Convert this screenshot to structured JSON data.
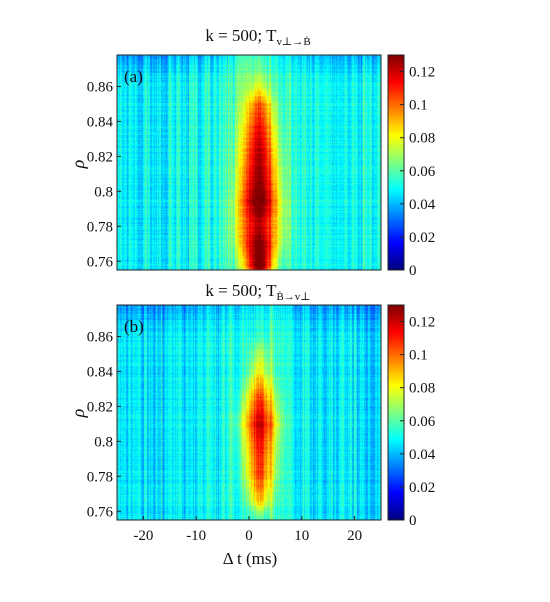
{
  "figure": {
    "xlabel": "Δ t (ms)",
    "ylabel": "ρ",
    "colormap": "jet",
    "panel_labels": [
      "(a)",
      "(b)"
    ]
  },
  "chart_data": [
    {
      "type": "heatmap",
      "panel": "(a)",
      "title": "k = 500;  T",
      "title_sub": "v⊥→Ḃ",
      "xlabel": "",
      "ylabel": "ρ",
      "xlim": [
        -25,
        25
      ],
      "ylim": [
        0.755,
        0.878
      ],
      "xticks": [
        -20,
        -10,
        0,
        10,
        20
      ],
      "yticks": [
        0.76,
        0.78,
        0.8,
        0.82,
        0.84,
        0.86
      ],
      "ytick_labels": [
        "0.76",
        "0.78",
        "0.8",
        "0.82",
        "0.84",
        "0.86"
      ],
      "colorbar": {
        "min": 0,
        "max": 0.13,
        "ticks": [
          0,
          0.02,
          0.04,
          0.06,
          0.08,
          0.1,
          0.12
        ],
        "tick_labels": [
          "0",
          "0.02",
          "0.04",
          "0.06",
          "0.08",
          "0.1",
          "0.12"
        ]
      },
      "background_level": 0.05,
      "peak_ridge": {
        "x_center": 2,
        "points": [
          {
            "rho": 0.757,
            "value": 0.12,
            "width": 1.8
          },
          {
            "rho": 0.77,
            "value": 0.115,
            "width": 2.4
          },
          {
            "rho": 0.78,
            "value": 0.105,
            "width": 2.8
          },
          {
            "rho": 0.795,
            "value": 0.12,
            "width": 2.6
          },
          {
            "rho": 0.81,
            "value": 0.11,
            "width": 2.4
          },
          {
            "rho": 0.825,
            "value": 0.105,
            "width": 2.2
          },
          {
            "rho": 0.84,
            "value": 0.095,
            "width": 2.0
          },
          {
            "rho": 0.85,
            "value": 0.085,
            "width": 1.8
          },
          {
            "rho": 0.86,
            "value": 0.06,
            "width": 1.5
          }
        ]
      }
    },
    {
      "type": "heatmap",
      "panel": "(b)",
      "title": "k = 500;  T",
      "title_sub": "Ḃ→v⊥",
      "xlabel": "Δ t (ms)",
      "ylabel": "ρ",
      "xlim": [
        -25,
        25
      ],
      "ylim": [
        0.755,
        0.878
      ],
      "xticks": [
        -20,
        -10,
        0,
        10,
        20
      ],
      "yticks": [
        0.76,
        0.78,
        0.8,
        0.82,
        0.84,
        0.86
      ],
      "ytick_labels": [
        "0.76",
        "0.78",
        "0.8",
        "0.82",
        "0.84",
        "0.86"
      ],
      "colorbar": {
        "min": 0,
        "max": 0.13,
        "ticks": [
          0,
          0.02,
          0.04,
          0.06,
          0.08,
          0.1,
          0.12
        ],
        "tick_labels": [
          "0",
          "0.02",
          "0.04",
          "0.06",
          "0.08",
          "0.1",
          "0.12"
        ]
      },
      "background_level": 0.045,
      "peak_ridge": {
        "x_center": 2,
        "points": [
          {
            "rho": 0.765,
            "value": 0.075,
            "width": 1.5
          },
          {
            "rho": 0.78,
            "value": 0.095,
            "width": 1.9
          },
          {
            "rho": 0.795,
            "value": 0.1,
            "width": 2.0
          },
          {
            "rho": 0.81,
            "value": 0.11,
            "width": 2.2
          },
          {
            "rho": 0.825,
            "value": 0.095,
            "width": 1.9
          },
          {
            "rho": 0.84,
            "value": 0.07,
            "width": 1.5
          },
          {
            "rho": 0.85,
            "value": 0.06,
            "width": 1.3
          }
        ]
      }
    }
  ]
}
